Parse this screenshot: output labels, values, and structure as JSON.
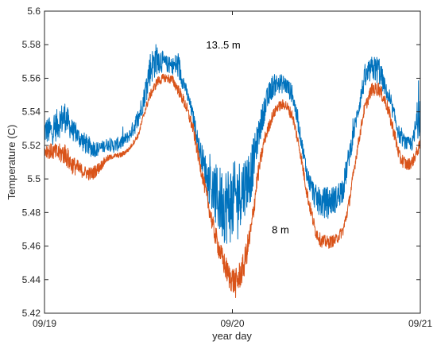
{
  "chart_data": {
    "type": "line",
    "xlabel": "year day",
    "ylabel": "Temperature (C)",
    "xlim": [
      0,
      2
    ],
    "ylim": [
      5.42,
      5.6
    ],
    "x_ticks": [
      0,
      1,
      2
    ],
    "x_tick_labels": [
      "09/19",
      "09/20",
      "09/21"
    ],
    "y_ticks": [
      5.42,
      5.44,
      5.46,
      5.48,
      5.5,
      5.52,
      5.54,
      5.56,
      5.58,
      5.6
    ],
    "y_tick_labels": [
      "5.42",
      "5.44",
      "5.46",
      "5.48",
      "5.5",
      "5.52",
      "5.54",
      "5.56",
      "5.58",
      "5.6"
    ],
    "grid": false,
    "box": true,
    "colors": {
      "13.5m": "#0072BD",
      "8m": "#D95319"
    },
    "annotations": [
      {
        "text": "13..5 m",
        "x": 0.86,
        "y": 5.58
      },
      {
        "text": "8 m",
        "x": 1.21,
        "y": 5.47
      }
    ],
    "series": [
      {
        "color": "#0072BD",
        "lo": [
          [
            0,
            5.518
          ],
          [
            0.04,
            5.517
          ],
          [
            0.08,
            5.521
          ],
          [
            0.11,
            5.524
          ],
          [
            0.14,
            5.521
          ],
          [
            0.17,
            5.519
          ],
          [
            0.21,
            5.513
          ],
          [
            0.25,
            5.511
          ],
          [
            0.29,
            5.512
          ],
          [
            0.33,
            5.516
          ],
          [
            0.37,
            5.514
          ],
          [
            0.41,
            5.516
          ],
          [
            0.45,
            5.521
          ],
          [
            0.5,
            5.527
          ],
          [
            0.53,
            5.54
          ],
          [
            0.56,
            5.551
          ],
          [
            0.6,
            5.559
          ],
          [
            0.64,
            5.562
          ],
          [
            0.68,
            5.561
          ],
          [
            0.71,
            5.556
          ],
          [
            0.75,
            5.549
          ],
          [
            0.79,
            5.532
          ],
          [
            0.82,
            5.513
          ],
          [
            0.86,
            5.49
          ],
          [
            0.9,
            5.467
          ],
          [
            0.94,
            5.456
          ],
          [
            0.98,
            5.451
          ],
          [
            1.02,
            5.459
          ],
          [
            1.06,
            5.47
          ],
          [
            1.1,
            5.481
          ],
          [
            1.13,
            5.509
          ],
          [
            1.17,
            5.531
          ],
          [
            1.21,
            5.545
          ],
          [
            1.24,
            5.549
          ],
          [
            1.28,
            5.549
          ],
          [
            1.32,
            5.543
          ],
          [
            1.36,
            5.521
          ],
          [
            1.4,
            5.494
          ],
          [
            1.44,
            5.479
          ],
          [
            1.47,
            5.474
          ],
          [
            1.51,
            5.474
          ],
          [
            1.55,
            5.477
          ],
          [
            1.59,
            5.484
          ],
          [
            1.62,
            5.504
          ],
          [
            1.66,
            5.529
          ],
          [
            1.7,
            5.549
          ],
          [
            1.74,
            5.556
          ],
          [
            1.78,
            5.553
          ],
          [
            1.82,
            5.546
          ],
          [
            1.86,
            5.532
          ],
          [
            1.89,
            5.519
          ],
          [
            1.93,
            5.515
          ],
          [
            1.96,
            5.515
          ],
          [
            2,
            5.521
          ]
        ],
        "hi": [
          [
            0,
            5.537
          ],
          [
            0.04,
            5.537
          ],
          [
            0.08,
            5.544
          ],
          [
            0.11,
            5.547
          ],
          [
            0.14,
            5.537
          ],
          [
            0.17,
            5.532
          ],
          [
            0.21,
            5.528
          ],
          [
            0.25,
            5.524
          ],
          [
            0.29,
            5.522
          ],
          [
            0.33,
            5.524
          ],
          [
            0.37,
            5.524
          ],
          [
            0.41,
            5.526
          ],
          [
            0.45,
            5.529
          ],
          [
            0.5,
            5.543
          ],
          [
            0.53,
            5.555
          ],
          [
            0.56,
            5.576
          ],
          [
            0.6,
            5.582
          ],
          [
            0.64,
            5.574
          ],
          [
            0.68,
            5.572
          ],
          [
            0.71,
            5.577
          ],
          [
            0.75,
            5.558
          ],
          [
            0.79,
            5.542
          ],
          [
            0.82,
            5.526
          ],
          [
            0.86,
            5.514
          ],
          [
            0.9,
            5.509
          ],
          [
            0.94,
            5.508
          ],
          [
            0.98,
            5.509
          ],
          [
            1.02,
            5.511
          ],
          [
            1.06,
            5.514
          ],
          [
            1.1,
            5.52
          ],
          [
            1.13,
            5.531
          ],
          [
            1.17,
            5.55
          ],
          [
            1.21,
            5.562
          ],
          [
            1.24,
            5.563
          ],
          [
            1.28,
            5.562
          ],
          [
            1.32,
            5.556
          ],
          [
            1.36,
            5.531
          ],
          [
            1.4,
            5.507
          ],
          [
            1.44,
            5.497
          ],
          [
            1.47,
            5.494
          ],
          [
            1.51,
            5.496
          ],
          [
            1.55,
            5.496
          ],
          [
            1.59,
            5.503
          ],
          [
            1.62,
            5.52
          ],
          [
            1.66,
            5.541
          ],
          [
            1.7,
            5.565
          ],
          [
            1.74,
            5.573
          ],
          [
            1.78,
            5.574
          ],
          [
            1.82,
            5.556
          ],
          [
            1.86,
            5.543
          ],
          [
            1.89,
            5.53
          ],
          [
            1.93,
            5.525
          ],
          [
            1.96,
            5.526
          ],
          [
            2,
            5.561
          ]
        ]
      },
      {
        "color": "#D95319",
        "lo": [
          [
            0,
            5.511
          ],
          [
            0.04,
            5.51
          ],
          [
            0.08,
            5.507
          ],
          [
            0.11,
            5.506
          ],
          [
            0.14,
            5.501
          ],
          [
            0.17,
            5.5
          ],
          [
            0.21,
            5.499
          ],
          [
            0.25,
            5.497
          ],
          [
            0.29,
            5.502
          ],
          [
            0.33,
            5.509
          ],
          [
            0.37,
            5.512
          ],
          [
            0.41,
            5.512
          ],
          [
            0.45,
            5.516
          ],
          [
            0.5,
            5.524
          ],
          [
            0.53,
            5.536
          ],
          [
            0.56,
            5.546
          ],
          [
            0.6,
            5.554
          ],
          [
            0.64,
            5.557
          ],
          [
            0.68,
            5.555
          ],
          [
            0.71,
            5.549
          ],
          [
            0.75,
            5.539
          ],
          [
            0.79,
            5.525
          ],
          [
            0.82,
            5.507
          ],
          [
            0.86,
            5.485
          ],
          [
            0.9,
            5.462
          ],
          [
            0.94,
            5.445
          ],
          [
            0.98,
            5.432
          ],
          [
            1.02,
            5.425
          ],
          [
            1.06,
            5.437
          ],
          [
            1.1,
            5.459
          ],
          [
            1.13,
            5.491
          ],
          [
            1.17,
            5.518
          ],
          [
            1.21,
            5.532
          ],
          [
            1.24,
            5.539
          ],
          [
            1.28,
            5.54
          ],
          [
            1.32,
            5.533
          ],
          [
            1.36,
            5.512
          ],
          [
            1.4,
            5.484
          ],
          [
            1.44,
            5.464
          ],
          [
            1.47,
            5.458
          ],
          [
            1.51,
            5.457
          ],
          [
            1.55,
            5.459
          ],
          [
            1.59,
            5.465
          ],
          [
            1.62,
            5.48
          ],
          [
            1.66,
            5.51
          ],
          [
            1.7,
            5.536
          ],
          [
            1.74,
            5.548
          ],
          [
            1.78,
            5.548
          ],
          [
            1.82,
            5.539
          ],
          [
            1.86,
            5.522
          ],
          [
            1.89,
            5.507
          ],
          [
            1.93,
            5.503
          ],
          [
            1.96,
            5.506
          ],
          [
            2,
            5.516
          ]
        ],
        "hi": [
          [
            0,
            5.522
          ],
          [
            0.04,
            5.521
          ],
          [
            0.08,
            5.521
          ],
          [
            0.11,
            5.522
          ],
          [
            0.14,
            5.515
          ],
          [
            0.17,
            5.512
          ],
          [
            0.21,
            5.508
          ],
          [
            0.25,
            5.507
          ],
          [
            0.29,
            5.51
          ],
          [
            0.33,
            5.514
          ],
          [
            0.37,
            5.515
          ],
          [
            0.41,
            5.516
          ],
          [
            0.45,
            5.519
          ],
          [
            0.5,
            5.528
          ],
          [
            0.53,
            5.541
          ],
          [
            0.56,
            5.552
          ],
          [
            0.6,
            5.561
          ],
          [
            0.64,
            5.563
          ],
          [
            0.68,
            5.562
          ],
          [
            0.71,
            5.557
          ],
          [
            0.75,
            5.548
          ],
          [
            0.79,
            5.534
          ],
          [
            0.82,
            5.517
          ],
          [
            0.86,
            5.496
          ],
          [
            0.9,
            5.476
          ],
          [
            0.94,
            5.461
          ],
          [
            0.98,
            5.45
          ],
          [
            1.02,
            5.447
          ],
          [
            1.06,
            5.456
          ],
          [
            1.1,
            5.477
          ],
          [
            1.13,
            5.504
          ],
          [
            1.17,
            5.527
          ],
          [
            1.21,
            5.54
          ],
          [
            1.24,
            5.546
          ],
          [
            1.28,
            5.548
          ],
          [
            1.32,
            5.541
          ],
          [
            1.36,
            5.52
          ],
          [
            1.4,
            5.494
          ],
          [
            1.44,
            5.474
          ],
          [
            1.47,
            5.467
          ],
          [
            1.51,
            5.466
          ],
          [
            1.55,
            5.467
          ],
          [
            1.59,
            5.473
          ],
          [
            1.62,
            5.489
          ],
          [
            1.66,
            5.518
          ],
          [
            1.7,
            5.544
          ],
          [
            1.74,
            5.557
          ],
          [
            1.78,
            5.558
          ],
          [
            1.82,
            5.549
          ],
          [
            1.86,
            5.532
          ],
          [
            1.89,
            5.517
          ],
          [
            1.93,
            5.512
          ],
          [
            1.96,
            5.514
          ],
          [
            2,
            5.524
          ]
        ]
      }
    ]
  }
}
